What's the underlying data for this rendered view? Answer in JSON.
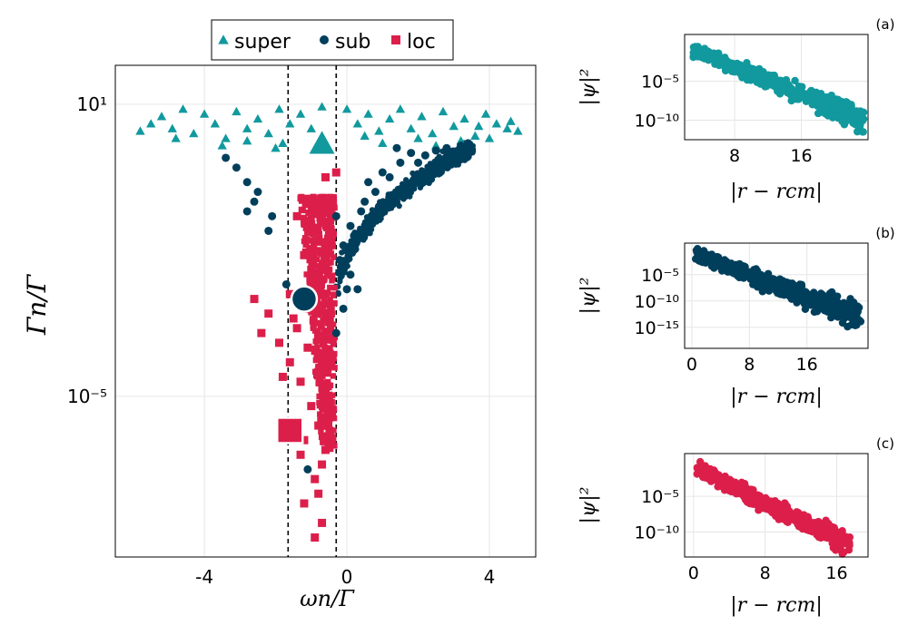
{
  "colors": {
    "super": "#11999e",
    "sub": "#003f5c",
    "loc": "#dc1f4a",
    "grid": "#e6e6e6",
    "axis": "#000000"
  },
  "chart_data": [
    {
      "type": "scatter",
      "panel": "main",
      "xlabel": "ωn/Γ",
      "ylabel": "Γn/Γ",
      "xlim": [
        -6.5,
        5.3
      ],
      "ylim_log10": [
        -8.3,
        1.8
      ],
      "yscale": "log",
      "x_ticks": [
        {
          "value": -4,
          "label": "-4"
        },
        {
          "value": 0,
          "label": "0"
        },
        {
          "value": 4,
          "label": "4"
        }
      ],
      "y_ticks": [
        {
          "value_log10": 1,
          "label": "10¹"
        },
        {
          "value_log10": -5,
          "label": "10⁻⁵"
        }
      ],
      "grid": true,
      "legend": {
        "position": "top",
        "entries": [
          "super",
          "sub",
          "loc"
        ]
      },
      "vlines": [
        -1.65,
        -0.3
      ],
      "series": [
        {
          "name": "super",
          "marker": "triangle",
          "points": [
            [
              -5.5,
              0.6
            ],
            [
              -5.2,
              0.75
            ],
            [
              -4.9,
              0.5
            ],
            [
              -4.6,
              0.9
            ],
            [
              -4.3,
              0.4
            ],
            [
              -4.0,
              0.8
            ],
            [
              -3.7,
              0.6
            ],
            [
              -3.4,
              0.3
            ],
            [
              -3.1,
              0.85
            ],
            [
              -2.8,
              0.5
            ],
            [
              -2.5,
              0.7
            ],
            [
              -2.2,
              0.4
            ],
            [
              -1.9,
              0.9
            ],
            [
              -1.6,
              0.6
            ],
            [
              -1.3,
              0.8
            ],
            [
              -1.0,
              0.5
            ],
            [
              -0.7,
              0.95
            ],
            [
              0.0,
              0.9
            ],
            [
              0.3,
              0.6
            ],
            [
              0.6,
              0.8
            ],
            [
              0.9,
              0.45
            ],
            [
              1.2,
              0.7
            ],
            [
              1.5,
              0.9
            ],
            [
              1.8,
              0.5
            ],
            [
              2.1,
              0.75
            ],
            [
              2.4,
              0.4
            ],
            [
              2.7,
              0.85
            ],
            [
              3.0,
              0.55
            ],
            [
              3.3,
              0.7
            ],
            [
              3.6,
              0.35
            ],
            [
              3.9,
              0.8
            ],
            [
              4.2,
              0.6
            ],
            [
              4.5,
              0.5
            ],
            [
              4.8,
              0.45
            ],
            [
              -3.5,
              0.15
            ],
            [
              -2.8,
              0.25
            ],
            [
              -2.0,
              0.1
            ],
            [
              1.0,
              0.2
            ],
            [
              2.5,
              0.15
            ],
            [
              3.2,
              0.25
            ],
            [
              4.0,
              0.3
            ],
            [
              -5.8,
              0.45
            ],
            [
              -4.8,
              0.3
            ],
            [
              -1.8,
              0.2
            ],
            [
              0.5,
              0.35
            ],
            [
              3.7,
              0.55
            ],
            [
              4.6,
              0.65
            ],
            [
              2.0,
              0.3
            ]
          ]
        },
        {
          "name": "sub",
          "marker": "circle",
          "points": [
            [
              -3.4,
              -0.1
            ],
            [
              -3.1,
              -0.3
            ],
            [
              -2.8,
              -0.6
            ],
            [
              -2.5,
              -0.8
            ],
            [
              -2.8,
              -1.2
            ],
            [
              -2.6,
              -1.0
            ],
            [
              -2.2,
              -1.6
            ],
            [
              -2.1,
              -1.3
            ],
            [
              -1.7,
              -2.7
            ],
            [
              -1.1,
              -6.5
            ],
            [
              -0.3,
              -1.3
            ],
            [
              -0.1,
              -1.9
            ],
            [
              0.1,
              -2.5
            ],
            [
              0.3,
              -2.8
            ],
            [
              -0.1,
              -3.2
            ],
            [
              0.1,
              -1.5
            ],
            [
              0.5,
              -1.0
            ],
            [
              0.8,
              -0.8
            ],
            [
              1.0,
              -0.4
            ],
            [
              1.5,
              -0.2
            ],
            [
              1.8,
              0.0
            ],
            [
              2.5,
              0.05
            ],
            [
              3.0,
              0.0
            ],
            [
              3.4,
              0.2
            ],
            [
              0.2,
              -1.7
            ],
            [
              0.4,
              -1.2
            ],
            [
              0.9,
              -1.1
            ],
            [
              1.2,
              -0.5
            ],
            [
              2.0,
              -0.2
            ],
            [
              2.8,
              0.1
            ],
            [
              -0.2,
              -2.2
            ],
            [
              0.0,
              -2.8
            ],
            [
              0.6,
              -0.6
            ],
            [
              1.4,
              0.1
            ],
            [
              2.2,
              -0.05
            ],
            [
              3.2,
              0.15
            ],
            [
              -0.3,
              -3.7
            ]
          ]
        },
        {
          "name": "loc",
          "marker": "square",
          "points": [
            [
              -1.6,
              -2.9
            ],
            [
              -1.5,
              -3.4
            ],
            [
              -1.2,
              -2.1
            ],
            [
              -1.0,
              -2.4
            ],
            [
              -0.7,
              -2.6
            ],
            [
              -2.6,
              -3.0
            ],
            [
              -2.2,
              -3.3
            ],
            [
              -2.4,
              -3.7
            ],
            [
              -1.9,
              -3.9
            ],
            [
              -1.6,
              -4.3
            ],
            [
              -1.3,
              -4.7
            ],
            [
              -1.0,
              -5.2
            ],
            [
              -0.8,
              -5.6
            ],
            [
              -0.6,
              -6.1
            ],
            [
              -0.9,
              -6.7
            ],
            [
              -1.2,
              -7.2
            ],
            [
              -0.7,
              -7.6
            ],
            [
              -0.9,
              -2.8
            ],
            [
              -0.5,
              -3.1
            ],
            [
              -1.4,
              -3.6
            ],
            [
              -1.1,
              -4.0
            ],
            [
              -0.8,
              -4.5
            ],
            [
              -0.6,
              -4.9
            ],
            [
              -0.5,
              -5.4
            ],
            [
              -1.3,
              -6.2
            ],
            [
              -0.8,
              -7.0
            ],
            [
              -0.9,
              -7.9
            ],
            [
              -1.4,
              -1.3
            ],
            [
              -0.3,
              -0.4
            ],
            [
              -0.6,
              -0.5
            ],
            [
              -1.1,
              -3.2
            ],
            [
              -0.4,
              -4.2
            ],
            [
              -1.8,
              -4.6
            ],
            [
              -1.2,
              -5.9
            ],
            [
              -0.7,
              -6.4
            ]
          ]
        }
      ],
      "highlights": [
        {
          "series": "super",
          "x": -0.7,
          "y_log10": 0.2
        },
        {
          "series": "sub",
          "x": -1.2,
          "y_log10": -3.0
        },
        {
          "series": "loc",
          "x": -1.6,
          "y_log10": -5.7
        }
      ]
    },
    {
      "type": "scatter",
      "panel": "a",
      "label": "(a)",
      "series": "super",
      "xlabel": "|r − rcm|",
      "ylabel": "|ψ|²",
      "x_ticks": [
        {
          "value": 8,
          "label": "8"
        },
        {
          "value": 16,
          "label": "16"
        }
      ],
      "y_ticks": [
        {
          "value_log10": -5,
          "label": "10⁻⁵"
        },
        {
          "value_log10": -10,
          "label": "10⁻¹⁰"
        }
      ],
      "xlim": [
        2,
        24
      ],
      "ylim_log10": [
        -12.5,
        1
      ],
      "band": {
        "x_start": 3,
        "x_end": 23.5,
        "y_start_log10": -1,
        "y_end_log10": -10,
        "spread": 2.2
      }
    },
    {
      "type": "scatter",
      "panel": "b",
      "label": "(b)",
      "series": "sub",
      "xlabel": "|r − rcm|",
      "ylabel": "|ψ|²",
      "x_ticks": [
        {
          "value": 0,
          "label": "0"
        },
        {
          "value": 8,
          "label": "8"
        },
        {
          "value": 16,
          "label": "16"
        }
      ],
      "y_ticks": [
        {
          "value_log10": -5,
          "label": "10⁻⁵"
        },
        {
          "value_log10": -10,
          "label": "10⁻¹⁰"
        },
        {
          "value_log10": -15,
          "label": "10⁻¹⁵"
        }
      ],
      "xlim": [
        -1,
        24.5
      ],
      "ylim_log10": [
        -19,
        1
      ],
      "band": {
        "x_start": 0.5,
        "x_end": 23.5,
        "y_start_log10": -1,
        "y_end_log10": -13,
        "spread": 3.5
      }
    },
    {
      "type": "scatter",
      "panel": "c",
      "label": "(c)",
      "series": "loc",
      "xlabel": "|r − rcm|",
      "ylabel": "|ψ|²",
      "x_ticks": [
        {
          "value": 0,
          "label": "0"
        },
        {
          "value": 8,
          "label": "8"
        },
        {
          "value": 16,
          "label": "16"
        }
      ],
      "y_ticks": [
        {
          "value_log10": -5,
          "label": "10⁻⁵"
        },
        {
          "value_log10": -10,
          "label": "10⁻¹⁰"
        }
      ],
      "xlim": [
        -1,
        19.5
      ],
      "ylim_log10": [
        -13.5,
        1
      ],
      "band": {
        "x_start": 0.3,
        "x_end": 17.5,
        "y_start_log10": -1,
        "y_end_log10": -12,
        "spread": 2.5
      }
    }
  ]
}
